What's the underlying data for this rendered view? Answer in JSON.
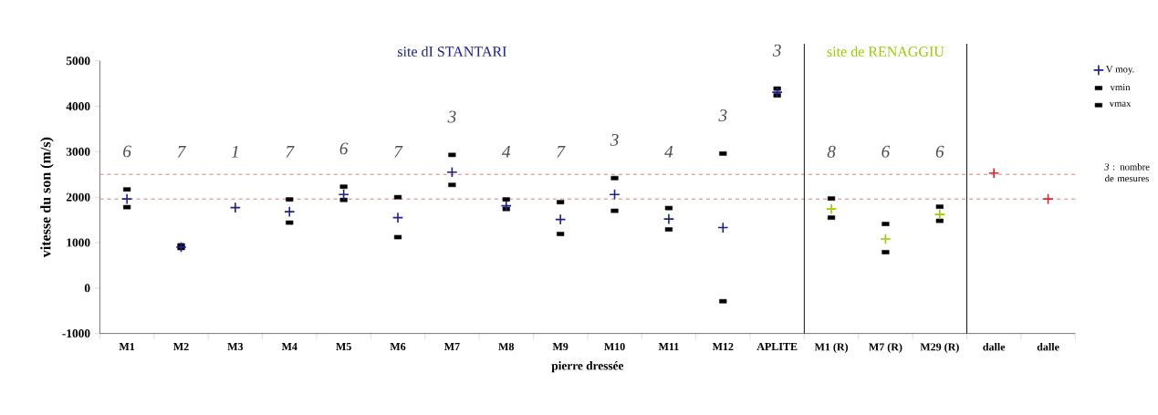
{
  "chart_data": {
    "type": "scatter",
    "xlabel": "pierre dressée",
    "ylabel": "vitesse du son (m/s)",
    "categories": [
      "M1",
      "M2",
      "M3",
      "M4",
      "M5",
      "M6",
      "M7",
      "M8",
      "M9",
      "M10",
      "M11",
      "M12",
      "APLITE",
      "M1 (R)",
      "M7 (R)",
      "M29 (R)",
      "dalle",
      "dalle"
    ],
    "series": [
      {
        "name": "V moy.",
        "color": "#1f1f8f",
        "marker": "cross",
        "colors": [
          "#1f1f8f",
          "#1f1f8f",
          "#1f1f8f",
          "#1f1f8f",
          "#1f1f8f",
          "#1f1f8f",
          "#1f1f8f",
          "#1f1f8f",
          "#1f1f8f",
          "#1f1f8f",
          "#1f1f8f",
          "#1f1f8f",
          "#1f1f8f",
          "#99cc00",
          "#99cc00",
          "#99cc00",
          "#e8202a",
          "#e8202a"
        ],
        "values": [
          1960,
          900,
          1770,
          1680,
          2060,
          1550,
          2550,
          1810,
          1510,
          2060,
          1520,
          1330,
          4310,
          1740,
          1080,
          1620,
          2530,
          1960
        ]
      },
      {
        "name": "vmin",
        "color": "#000000",
        "marker": "square",
        "values": [
          1780,
          880,
          null,
          1440,
          1940,
          1120,
          2270,
          1740,
          1190,
          1700,
          1290,
          -290,
          4240,
          1550,
          790,
          1480,
          null,
          null
        ]
      },
      {
        "name": "vmax",
        "color": "#000000",
        "marker": "square",
        "values": [
          2170,
          940,
          null,
          1950,
          2230,
          2000,
          2930,
          1950,
          1890,
          2420,
          1760,
          2960,
          4390,
          1970,
          1410,
          1790,
          null,
          null
        ]
      }
    ],
    "ylim": [
      -1000,
      5000
    ],
    "yticks": [
      -1000,
      0,
      1000,
      2000,
      3000,
      4000,
      5000
    ],
    "grid": false,
    "legend": "right",
    "ref_lines": [
      {
        "axis": "y",
        "value": 2500,
        "color": "#e87070",
        "line_style": "dashed"
      },
      {
        "axis": "y",
        "value": 1960,
        "color": "#e87070",
        "line_style": "dashed"
      }
    ],
    "annotations": [
      "site dI STANTARI",
      "site de RENAGGIU",
      "*3* : nombre de mesures",
      "6",
      "7",
      "1",
      "7",
      "6",
      "7",
      "3",
      "4",
      "7",
      "3",
      "4",
      "3",
      "3",
      "8",
      "6",
      "6"
    ]
  }
}
